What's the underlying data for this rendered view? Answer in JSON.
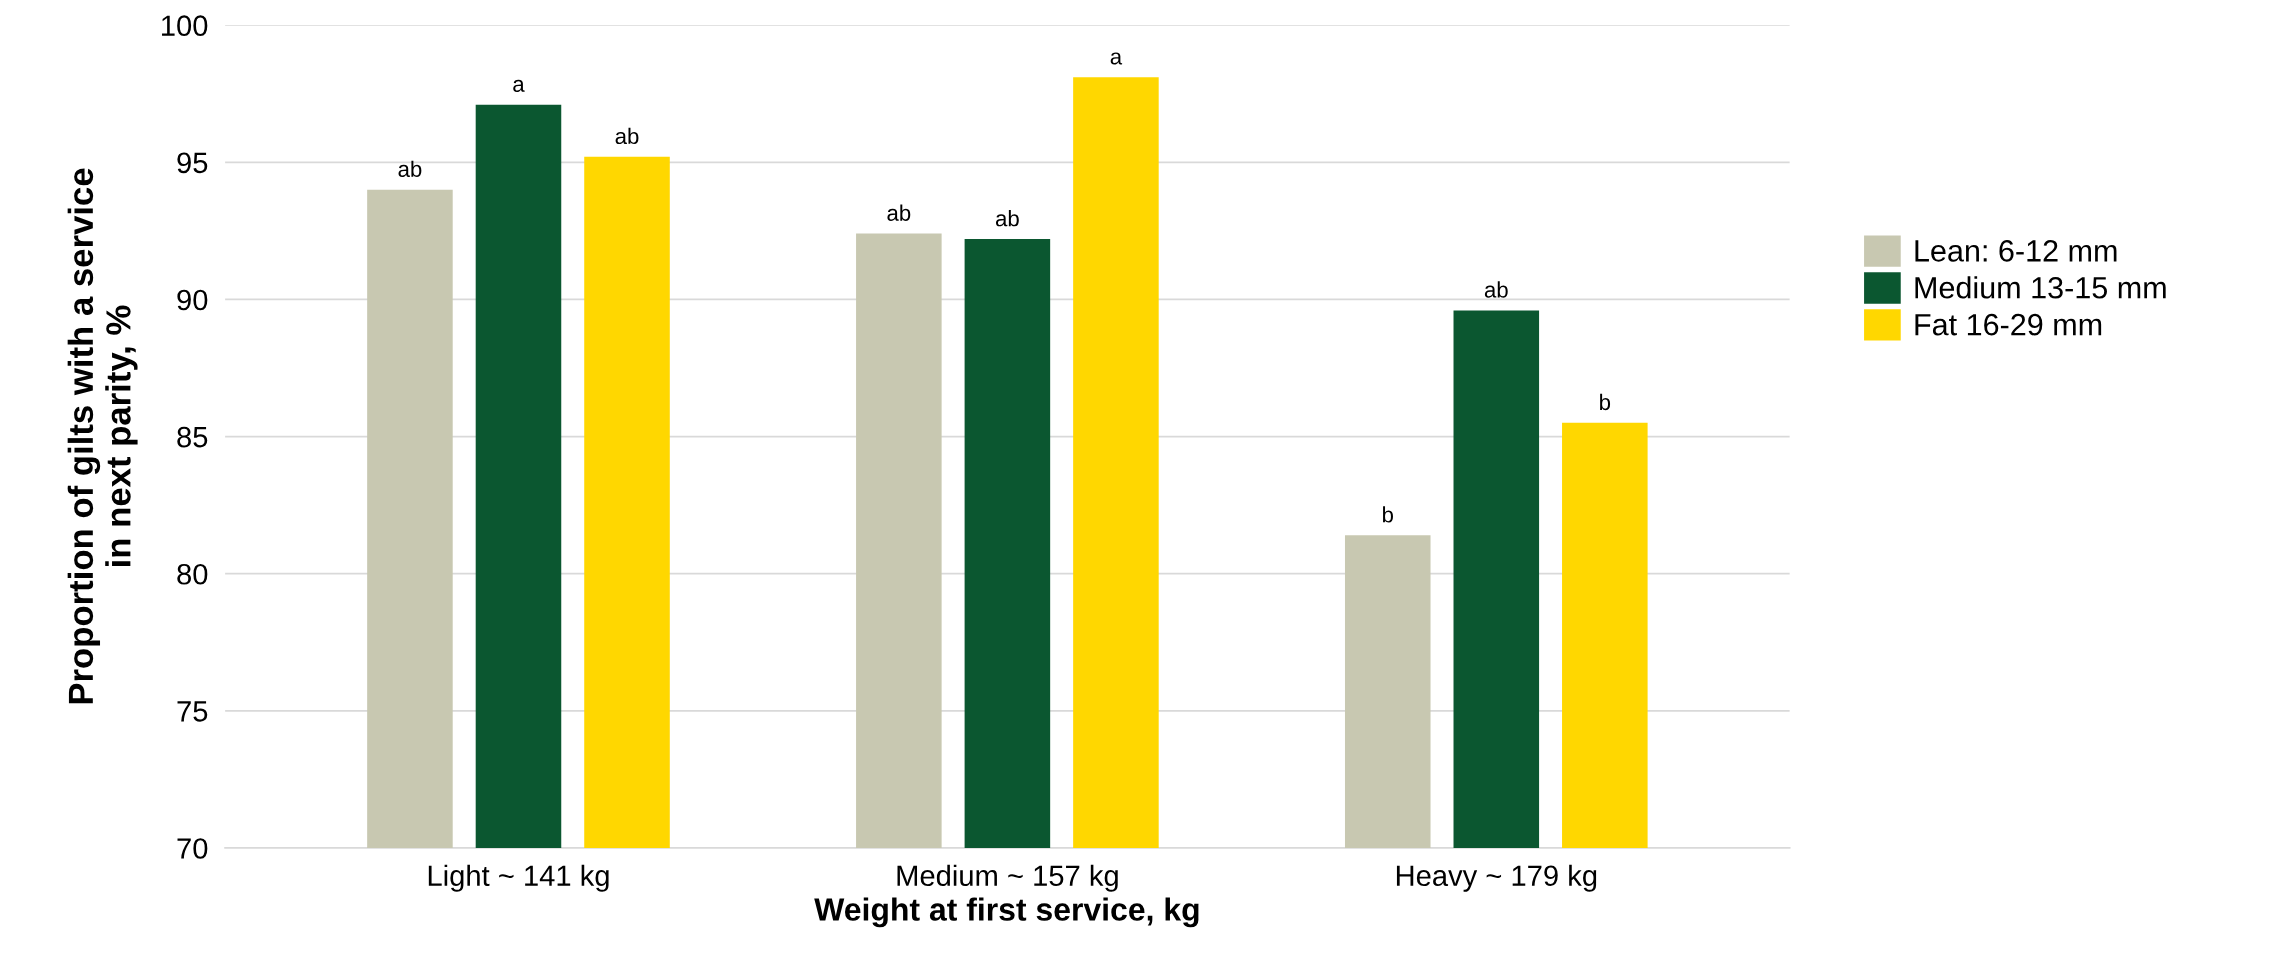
{
  "chart_data": {
    "type": "bar",
    "xlabel": "Weight at first service, kg",
    "ylabel": "Proportion of gilts with a service\nin next parity, %",
    "categories": [
      "Light ~ 141 kg",
      "Medium ~ 157 kg",
      "Heavy ~ 179 kg"
    ],
    "series": [
      {
        "name": "Lean: 6-12 mm",
        "color": "#c8c8b1",
        "values": [
          94.0,
          92.4,
          81.4
        ],
        "value_labels": [
          "ab",
          "ab",
          "b"
        ]
      },
      {
        "name": "Medium 13-15 mm",
        "color": "#0b5730",
        "values": [
          97.1,
          92.2,
          89.6
        ],
        "value_labels": [
          "a",
          "ab",
          "ab"
        ]
      },
      {
        "name": "Fat 16-29 mm",
        "color": "#ffd700",
        "values": [
          95.2,
          98.1,
          85.5
        ],
        "value_labels": [
          "ab",
          "a",
          "b"
        ]
      }
    ],
    "ylim": [
      70,
      100
    ],
    "yticks": [
      70,
      75,
      80,
      85,
      90,
      95,
      100
    ],
    "grid": "y",
    "legend": "right"
  }
}
